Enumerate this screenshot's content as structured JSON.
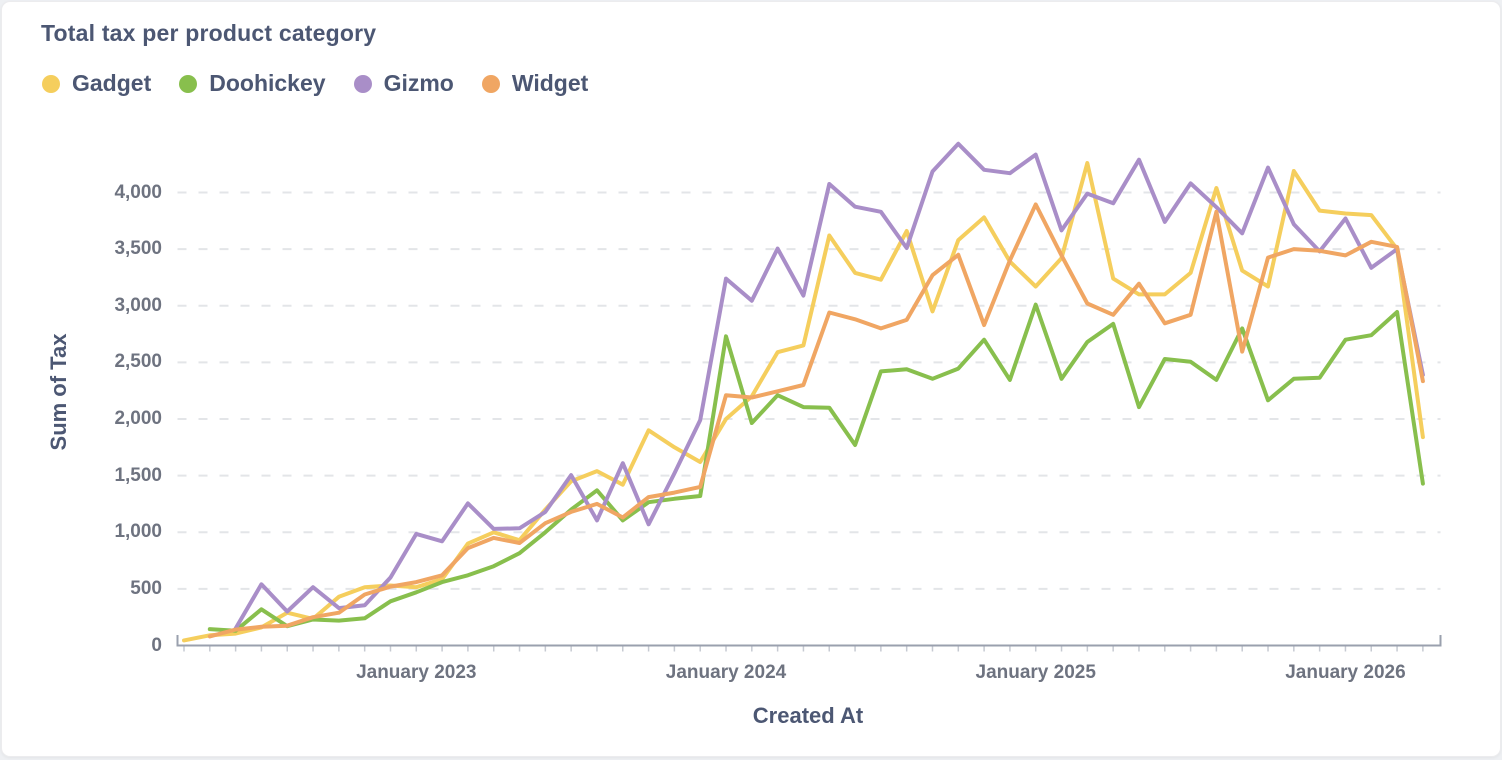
{
  "card": {
    "title": "Total tax per product category"
  },
  "chart_data": {
    "type": "line",
    "title": "Total tax per product category",
    "xlabel": "Created At",
    "ylabel": "Sum of Tax",
    "ylim": [
      0,
      4600
    ],
    "grid": "horizontal-dashed",
    "legend_position": "top-left",
    "y_ticks": [
      0,
      500,
      1000,
      1500,
      2000,
      2500,
      3000,
      3500,
      4000
    ],
    "x_ticks": [
      {
        "label": "January 2023",
        "month_index": 9
      },
      {
        "label": "January 2024",
        "month_index": 21
      },
      {
        "label": "January 2025",
        "month_index": 33
      },
      {
        "label": "January 2026",
        "month_index": 45
      }
    ],
    "x": [
      "Apr 2022",
      "May 2022",
      "Jun 2022",
      "Jul 2022",
      "Aug 2022",
      "Sep 2022",
      "Oct 2022",
      "Nov 2022",
      "Dec 2022",
      "Jan 2023",
      "Feb 2023",
      "Mar 2023",
      "Apr 2023",
      "May 2023",
      "Jun 2023",
      "Jul 2023",
      "Aug 2023",
      "Sep 2023",
      "Oct 2023",
      "Nov 2023",
      "Dec 2023",
      "Jan 2024",
      "Feb 2024",
      "Mar 2024",
      "Apr 2024",
      "May 2024",
      "Jun 2024",
      "Jul 2024",
      "Aug 2024",
      "Sep 2024",
      "Oct 2024",
      "Nov 2024",
      "Dec 2024",
      "Jan 2025",
      "Feb 2025",
      "Mar 2025",
      "Apr 2025",
      "May 2025",
      "Jun 2025",
      "Jul 2025",
      "Aug 2025",
      "Sep 2025",
      "Oct 2025",
      "Nov 2025",
      "Dec 2025",
      "Jan 2026",
      "Feb 2026",
      "Mar 2026",
      "Apr 2026"
    ],
    "series": [
      {
        "name": "Gadget",
        "color": "#F5CE5D",
        "values": [
          45,
          90,
          105,
          160,
          290,
          235,
          430,
          515,
          530,
          515,
          585,
          900,
          1000,
          930,
          1200,
          1450,
          1540,
          1420,
          1900,
          1750,
          1620,
          2000,
          2200,
          2590,
          2650,
          3620,
          3290,
          3230,
          3660,
          2950,
          3580,
          3780,
          3390,
          3170,
          3420,
          4260,
          3240,
          3100,
          3100,
          3290,
          4040,
          3310,
          3170,
          4190,
          3840,
          3815,
          3800,
          3500,
          1840
        ]
      },
      {
        "name": "Doohickey",
        "color": "#88BF4D",
        "values": [
          null,
          145,
          130,
          320,
          170,
          230,
          220,
          240,
          390,
          470,
          560,
          620,
          700,
          815,
          1000,
          1200,
          1370,
          1105,
          1265,
          1295,
          1320,
          2730,
          1965,
          2210,
          2105,
          2100,
          1770,
          2420,
          2440,
          2355,
          2445,
          2700,
          2345,
          3010,
          2355,
          2680,
          2840,
          2105,
          2530,
          2505,
          2345,
          2800,
          2165,
          2355,
          2365,
          2700,
          2740,
          2945,
          1430
        ]
      },
      {
        "name": "Gizmo",
        "color": "#A98EC8",
        "values": [
          null,
          null,
          150,
          540,
          300,
          515,
          330,
          355,
          600,
          985,
          920,
          1255,
          1030,
          1035,
          1180,
          1505,
          1105,
          1610,
          1070,
          1520,
          1990,
          3240,
          3045,
          3505,
          3090,
          4075,
          3875,
          3830,
          3510,
          4185,
          4430,
          4200,
          4170,
          4335,
          3665,
          3990,
          3905,
          4290,
          3740,
          4080,
          3870,
          3640,
          4220,
          3720,
          3480,
          3770,
          3335,
          3500,
          2390
        ]
      },
      {
        "name": "Widget",
        "color": "#F0A663",
        "values": [
          null,
          80,
          140,
          165,
          175,
          250,
          290,
          450,
          520,
          560,
          620,
          860,
          950,
          905,
          1080,
          1180,
          1250,
          1130,
          1310,
          1350,
          1400,
          2210,
          2190,
          2245,
          2300,
          2940,
          2880,
          2800,
          2875,
          3270,
          3450,
          2830,
          3400,
          3895,
          3445,
          3020,
          2920,
          3195,
          2845,
          2920,
          3830,
          2595,
          3425,
          3500,
          3485,
          3445,
          3565,
          3520,
          2335
        ]
      }
    ],
    "style": {
      "grid_color": "#E3E5E8",
      "axis_line_color": "#9AA0AE",
      "tick_mark_color": "#C6CAD2",
      "title_color": "#4C5773",
      "tick_label_color": "#6E7380"
    }
  }
}
